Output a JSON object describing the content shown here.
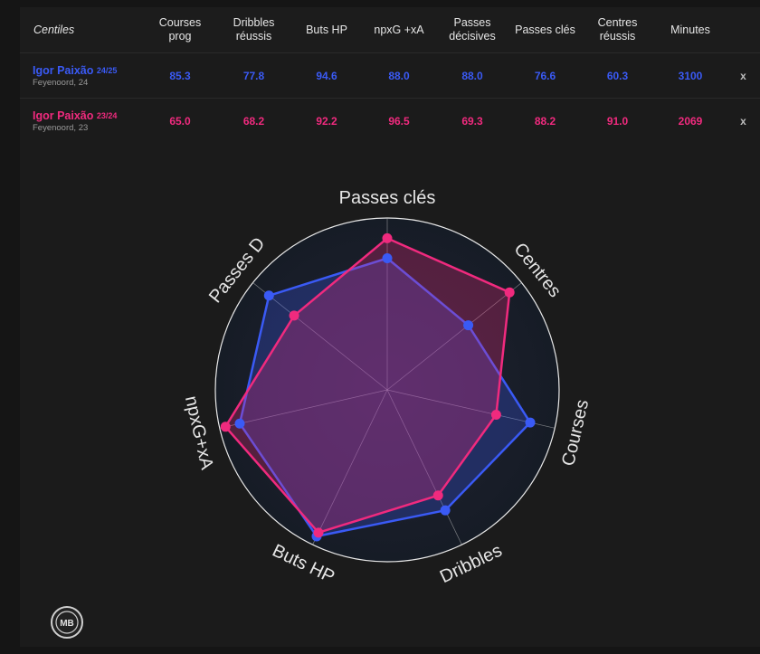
{
  "table": {
    "header_label": "Centiles",
    "columns": [
      {
        "l1": "Courses",
        "l2": "prog"
      },
      {
        "l1": "Dribbles",
        "l2": "réussis"
      },
      {
        "l1": "Buts HP",
        "l2": ""
      },
      {
        "l1": "npxG +xA",
        "l2": ""
      },
      {
        "l1": "Passes",
        "l2": "décisives"
      },
      {
        "l1": "Passes clés",
        "l2": ""
      },
      {
        "l1": "Centres",
        "l2": "réussis"
      },
      {
        "l1": "Minutes",
        "l2": ""
      }
    ],
    "rows": [
      {
        "name": "Igor Paixão",
        "season": "24/25",
        "sub": "Feyenoord, 24",
        "color": "#3a5af5",
        "values": [
          "85.3",
          "77.8",
          "94.6",
          "88.0",
          "88.0",
          "76.6",
          "60.3",
          "3100"
        ],
        "remove": "x"
      },
      {
        "name": "Igor Paixão",
        "season": "23/24",
        "sub": "Feyenoord, 23",
        "color": "#f02a7e",
        "values": [
          "65.0",
          "68.2",
          "92.2",
          "96.5",
          "69.3",
          "88.2",
          "91.0",
          "2069"
        ],
        "remove": "x"
      }
    ]
  },
  "chart_data": {
    "type": "radar",
    "axes": [
      "Passes clés",
      "Centres",
      "Courses",
      "Dribbles",
      "Buts HP",
      "npxG+xA",
      "Passes D"
    ],
    "range": [
      0,
      100
    ],
    "series": [
      {
        "name": "Igor Paixão 24/25",
        "color": "#3a5af5",
        "values": [
          76.6,
          60.3,
          85.3,
          77.8,
          94.6,
          88.0,
          88.0
        ]
      },
      {
        "name": "Igor Paixão 23/24",
        "color": "#f02a7e",
        "values": [
          88.2,
          91.0,
          65.0,
          68.2,
          92.2,
          96.5,
          69.3
        ]
      }
    ]
  },
  "logo": {
    "text": "MB"
  }
}
